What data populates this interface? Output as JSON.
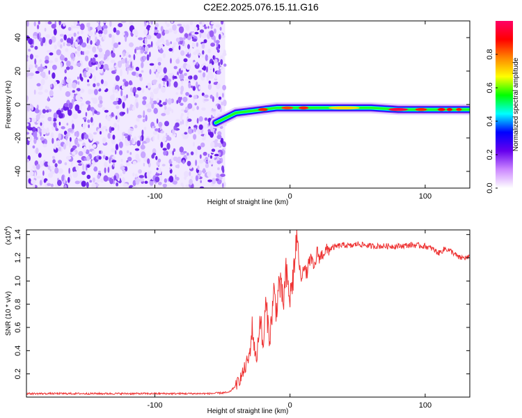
{
  "title": "C2E2.2025.076.15.11.G16",
  "chart_data": [
    {
      "type": "heatmap",
      "xlabel": "Height of straight line (km)",
      "ylabel": "Frequency (Hz)",
      "xlim": [
        -195,
        133
      ],
      "ylim": [
        -50,
        50
      ],
      "xticks": [
        -100,
        0,
        100
      ],
      "xtick_labels": [
        "-100",
        "0",
        "100"
      ],
      "yticks": [
        -40,
        -20,
        0,
        20,
        40
      ],
      "ytick_labels": [
        "-40",
        "-20",
        "0",
        "20",
        "40"
      ],
      "noise_region_x": [
        -195,
        -48
      ],
      "signal_track": {
        "x": [
          -55,
          -50,
          -45,
          -40,
          -30,
          -20,
          -10,
          0,
          10,
          20,
          40,
          60,
          80,
          100,
          115,
          133
        ],
        "freq": [
          -11,
          -9,
          -7,
          -5,
          -4,
          -3,
          -2,
          -2,
          -2,
          -2,
          -2,
          -2,
          -3,
          -3,
          -3,
          -3
        ]
      },
      "colorbar": {
        "label": "Normalized spectral amplitude",
        "range": [
          0,
          1
        ],
        "ticks": [
          0.0,
          0.2,
          0.4,
          0.6,
          0.8
        ],
        "tick_labels": [
          "0.0",
          "0.2",
          "0.4",
          "0.6",
          "0.8"
        ],
        "colors": [
          "#ffffff",
          "#cc88ff",
          "#6600ee",
          "#0000ff",
          "#00ffff",
          "#00ff00",
          "#ffff00",
          "#ff8800",
          "#ff0000",
          "#ff0066"
        ]
      }
    },
    {
      "type": "line",
      "xlabel": "Height of straight line (km)",
      "ylabel": "SNR (10 * v/v)",
      "multiplier_label": "(x10",
      "multiplier_exp": "4",
      "xlim": [
        -195,
        133
      ],
      "ylim": [
        0,
        1.44
      ],
      "xticks": [
        -100,
        0,
        100
      ],
      "xtick_labels": [
        "-100",
        "0",
        "100"
      ],
      "yticks": [
        0.2,
        0.4,
        0.6,
        0.8,
        1.0,
        1.2,
        1.4
      ],
      "ytick_labels": [
        "0.2",
        "0.4",
        "0.6",
        "0.8",
        "1.0",
        "1.2",
        "1.4"
      ],
      "color": "#ee3333",
      "series": [
        {
          "x": [
            -195,
            -100,
            -60,
            -45,
            -40,
            -35,
            -30,
            -28,
            -25,
            -22,
            -20,
            -18,
            -15,
            -12,
            -10,
            -8,
            -5,
            -3,
            0,
            3,
            5,
            8,
            10,
            12,
            15,
            18,
            20,
            22,
            25,
            30,
            35,
            40,
            45,
            50,
            55,
            60,
            70,
            80,
            90,
            100,
            105,
            110,
            115,
            120,
            125,
            133
          ],
          "y": [
            0.03,
            0.03,
            0.03,
            0.04,
            0.1,
            0.2,
            0.35,
            0.6,
            0.3,
            0.7,
            0.4,
            0.8,
            0.5,
            0.9,
            0.75,
            1.0,
            0.8,
            1.05,
            0.85,
            1.1,
            1.4,
            1.0,
            1.15,
            1.05,
            1.2,
            1.1,
            1.25,
            1.2,
            1.25,
            1.28,
            1.3,
            1.31,
            1.3,
            1.32,
            1.31,
            1.3,
            1.3,
            1.3,
            1.31,
            1.3,
            1.28,
            1.24,
            1.28,
            1.25,
            1.2,
            1.2
          ]
        }
      ]
    }
  ]
}
